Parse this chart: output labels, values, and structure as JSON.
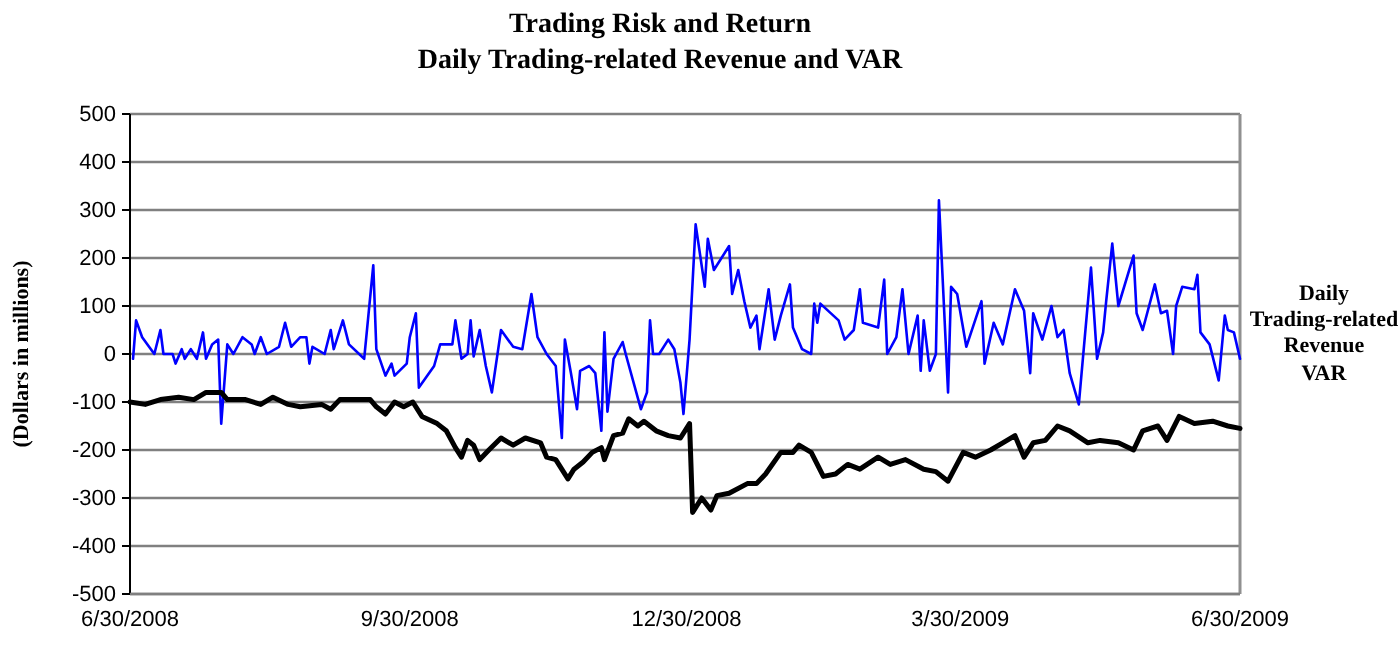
{
  "chart_data": {
    "type": "line",
    "title": "Trading Risk and Return",
    "subtitle": "Daily Trading-related Revenue and VAR",
    "ylabel": "(Dollars in millions)",
    "xlim": [
      "2008-06-30",
      "2009-06-30"
    ],
    "xticks": [
      {
        "value": "2008-06-30",
        "label": "6/30/2008"
      },
      {
        "value": "2008-09-30",
        "label": "9/30/2008"
      },
      {
        "value": "2008-12-30",
        "label": "12/30/2008"
      },
      {
        "value": "2009-03-30",
        "label": "3/30/2009"
      },
      {
        "value": "2009-06-30",
        "label": "6/30/2009"
      }
    ],
    "ylim": [
      -500,
      500
    ],
    "yticks": [
      -500,
      -400,
      -300,
      -200,
      -100,
      0,
      100,
      200,
      300,
      400,
      500
    ],
    "grid": "y",
    "legend": "right",
    "marker": "none",
    "series": [
      {
        "name": "Daily Trading-related Revenue",
        "color": "#0000ff",
        "x": [
          "2008-07-01",
          "2008-07-02",
          "2008-07-04",
          "2008-07-08",
          "2008-07-10",
          "2008-07-11",
          "2008-07-14",
          "2008-07-15",
          "2008-07-17",
          "2008-07-18",
          "2008-07-20",
          "2008-07-22",
          "2008-07-24",
          "2008-07-25",
          "2008-07-27",
          "2008-07-29",
          "2008-07-30",
          "2008-08-01",
          "2008-08-03",
          "2008-08-06",
          "2008-08-09",
          "2008-08-10",
          "2008-08-12",
          "2008-08-14",
          "2008-08-18",
          "2008-08-20",
          "2008-08-22",
          "2008-08-25",
          "2008-08-27",
          "2008-08-28",
          "2008-08-29",
          "2008-09-02",
          "2008-09-04",
          "2008-09-05",
          "2008-09-08",
          "2008-09-10",
          "2008-09-15",
          "2008-09-18",
          "2008-09-19",
          "2008-09-22",
          "2008-09-24",
          "2008-09-25",
          "2008-09-29",
          "2008-09-30",
          "2008-10-02",
          "2008-10-03",
          "2008-10-08",
          "2008-10-10",
          "2008-10-14",
          "2008-10-15",
          "2008-10-17",
          "2008-10-19",
          "2008-10-20",
          "2008-10-21",
          "2008-10-23",
          "2008-10-25",
          "2008-10-27",
          "2008-10-30",
          "2008-11-03",
          "2008-11-06",
          "2008-11-09",
          "2008-11-11",
          "2008-11-14",
          "2008-11-17",
          "2008-11-19",
          "2008-11-20",
          "2008-11-22",
          "2008-11-24",
          "2008-11-25",
          "2008-11-28",
          "2008-11-30",
          "2008-12-02",
          "2008-12-03",
          "2008-12-04",
          "2008-12-06",
          "2008-12-09",
          "2008-12-10",
          "2008-12-15",
          "2008-12-17",
          "2008-12-18",
          "2008-12-19",
          "2008-12-21",
          "2008-12-24",
          "2008-12-26",
          "2008-12-28",
          "2008-12-29",
          "2008-12-31",
          "2009-01-02",
          "2009-01-05",
          "2009-01-06",
          "2009-01-08",
          "2009-01-13",
          "2009-01-14",
          "2009-01-16",
          "2009-01-18",
          "2009-01-20",
          "2009-01-22",
          "2009-01-23",
          "2009-01-26",
          "2009-01-28",
          "2009-01-30",
          "2009-02-02",
          "2009-02-03",
          "2009-02-06",
          "2009-02-09",
          "2009-02-10",
          "2009-02-11",
          "2009-02-12",
          "2009-02-18",
          "2009-02-20",
          "2009-02-23",
          "2009-02-25",
          "2009-02-26",
          "2009-03-03",
          "2009-03-05",
          "2009-03-06",
          "2009-03-09",
          "2009-03-11",
          "2009-03-13",
          "2009-03-16",
          "2009-03-17",
          "2009-03-18",
          "2009-03-20",
          "2009-03-22",
          "2009-03-23",
          "2009-03-26",
          "2009-03-27",
          "2009-03-29",
          "2009-04-01",
          "2009-04-06",
          "2009-04-07",
          "2009-04-10",
          "2009-04-13",
          "2009-04-17",
          "2009-04-20",
          "2009-04-22",
          "2009-04-23",
          "2009-04-26",
          "2009-04-29",
          "2009-05-01",
          "2009-05-03",
          "2009-05-05",
          "2009-05-08",
          "2009-05-12",
          "2009-05-14",
          "2009-05-16",
          "2009-05-17",
          "2009-05-19",
          "2009-05-21",
          "2009-05-26",
          "2009-05-27",
          "2009-05-29",
          "2009-06-02",
          "2009-06-04",
          "2009-06-06",
          "2009-06-08",
          "2009-06-09",
          "2009-06-11",
          "2009-06-15",
          "2009-06-16",
          "2009-06-17",
          "2009-06-20",
          "2009-06-23",
          "2009-06-25",
          "2009-06-26",
          "2009-06-28",
          "2009-06-30"
        ],
        "values": [
          -10,
          70,
          35,
          0,
          50,
          0,
          0,
          -20,
          10,
          -10,
          10,
          -10,
          45,
          -10,
          20,
          30,
          -145,
          20,
          0,
          35,
          20,
          0,
          35,
          0,
          15,
          65,
          15,
          35,
          35,
          -20,
          15,
          0,
          50,
          10,
          70,
          20,
          -10,
          185,
          10,
          -45,
          -20,
          -45,
          -20,
          35,
          85,
          -70,
          -25,
          20,
          20,
          70,
          -10,
          0,
          70,
          -5,
          50,
          -25,
          -80,
          50,
          15,
          10,
          125,
          35,
          0,
          -25,
          -175,
          30,
          -40,
          -115,
          -35,
          -25,
          -40,
          -160,
          45,
          -120,
          -10,
          25,
          0,
          -115,
          -80,
          70,
          0,
          0,
          30,
          10,
          -60,
          -125,
          30,
          270,
          140,
          240,
          175,
          225,
          125,
          175,
          110,
          55,
          80,
          10,
          135,
          30,
          80,
          145,
          55,
          10,
          0,
          105,
          65,
          105,
          70,
          30,
          50,
          135,
          65,
          55,
          155,
          0,
          35,
          135,
          0,
          80,
          -35,
          70,
          -35,
          0,
          320,
          -80,
          140,
          125,
          15,
          110,
          -20,
          65,
          20,
          135,
          90,
          -40,
          85,
          30,
          100,
          35,
          50,
          -40,
          -105,
          180,
          -10,
          45,
          110,
          230,
          100,
          205,
          85,
          50,
          145,
          85,
          90,
          0,
          100,
          140,
          135,
          165,
          45,
          20,
          -55,
          80,
          50,
          45,
          -10
        ]
      },
      {
        "name": "VAR",
        "color": "#000000",
        "x": [
          "2008-06-30",
          "2008-07-05",
          "2008-07-10",
          "2008-07-16",
          "2008-07-21",
          "2008-07-25",
          "2008-07-30",
          "2008-08-01",
          "2008-08-07",
          "2008-08-12",
          "2008-08-16",
          "2008-08-21",
          "2008-08-25",
          "2008-09-01",
          "2008-09-04",
          "2008-09-07",
          "2008-09-17",
          "2008-09-19",
          "2008-09-22",
          "2008-09-25",
          "2008-09-28",
          "2008-10-01",
          "2008-10-04",
          "2008-10-09",
          "2008-10-12",
          "2008-10-15",
          "2008-10-17",
          "2008-10-19",
          "2008-10-21",
          "2008-10-23",
          "2008-10-26",
          "2008-10-30",
          "2008-11-03",
          "2008-11-07",
          "2008-11-12",
          "2008-11-14",
          "2008-11-17",
          "2008-11-21",
          "2008-11-23",
          "2008-11-26",
          "2008-11-29",
          "2008-12-02",
          "2008-12-03",
          "2008-12-06",
          "2008-12-09",
          "2008-12-11",
          "2008-12-14",
          "2008-12-16",
          "2008-12-20",
          "2008-12-24",
          "2008-12-28",
          "2008-12-31",
          "2009-01-01",
          "2009-01-04",
          "2009-01-07",
          "2009-01-09",
          "2009-01-13",
          "2009-01-19",
          "2009-01-22",
          "2009-01-25",
          "2009-01-30",
          "2009-02-03",
          "2009-02-05",
          "2009-02-09",
          "2009-02-13",
          "2009-02-17",
          "2009-02-21",
          "2009-02-25",
          "2009-03-03",
          "2009-03-07",
          "2009-03-12",
          "2009-03-18",
          "2009-03-22",
          "2009-03-26",
          "2009-03-31",
          "2009-04-04",
          "2009-04-09",
          "2009-04-13",
          "2009-04-17",
          "2009-04-20",
          "2009-04-23",
          "2009-04-27",
          "2009-05-01",
          "2009-05-05",
          "2009-05-11",
          "2009-05-15",
          "2009-05-21",
          "2009-05-26",
          "2009-05-29",
          "2009-06-03",
          "2009-06-06",
          "2009-06-10",
          "2009-06-15",
          "2009-06-21",
          "2009-06-26",
          "2009-06-30"
        ],
        "values": [
          -100,
          -105,
          -95,
          -90,
          -95,
          -80,
          -80,
          -95,
          -95,
          -105,
          -90,
          -105,
          -110,
          -105,
          -115,
          -95,
          -95,
          -110,
          -125,
          -100,
          -110,
          -100,
          -130,
          -145,
          -160,
          -195,
          -215,
          -180,
          -190,
          -220,
          -200,
          -175,
          -190,
          -175,
          -185,
          -215,
          -220,
          -260,
          -240,
          -225,
          -205,
          -195,
          -220,
          -170,
          -165,
          -135,
          -150,
          -140,
          -160,
          -170,
          -175,
          -145,
          -330,
          -300,
          -325,
          -295,
          -290,
          -270,
          -270,
          -250,
          -205,
          -205,
          -190,
          -205,
          -255,
          -250,
          -230,
          -240,
          -215,
          -230,
          -220,
          -240,
          -245,
          -265,
          -205,
          -215,
          -200,
          -185,
          -170,
          -215,
          -185,
          -180,
          -150,
          -160,
          -185,
          -180,
          -185,
          -200,
          -160,
          -150,
          -180,
          -130,
          -145,
          -140,
          -150,
          -155
        ]
      }
    ]
  }
}
